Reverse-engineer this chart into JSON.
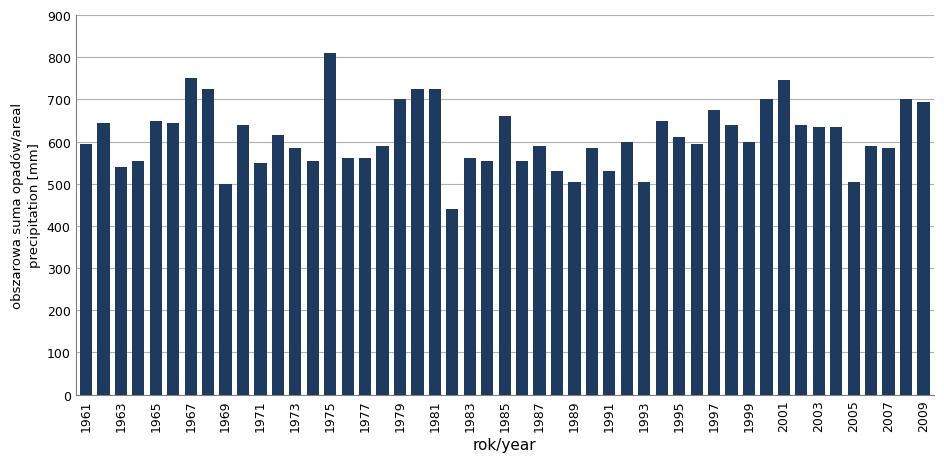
{
  "years": [
    1961,
    1962,
    1963,
    1964,
    1965,
    1966,
    1967,
    1968,
    1969,
    1970,
    1971,
    1972,
    1973,
    1974,
    1975,
    1976,
    1977,
    1978,
    1979,
    1980,
    1981,
    1982,
    1983,
    1984,
    1985,
    1986,
    1987,
    1988,
    1989,
    1990,
    1991,
    1992,
    1993,
    1994,
    1995,
    1996,
    1997,
    1998,
    1999,
    2000,
    2001,
    2002,
    2003,
    2004,
    2005,
    2006,
    2007,
    2008,
    2009
  ],
  "values": [
    595,
    645,
    540,
    555,
    650,
    645,
    750,
    725,
    500,
    640,
    550,
    615,
    585,
    555,
    810,
    560,
    560,
    590,
    700,
    725,
    725,
    440,
    560,
    555,
    660,
    555,
    590,
    530,
    505,
    585,
    530,
    600,
    505,
    650,
    610,
    595,
    675,
    640,
    600,
    700,
    745,
    640,
    635,
    635,
    505,
    590,
    585,
    700,
    695
  ],
  "bar_color": "#1e3a5f",
  "xlabel": "rok/year",
  "ylabel": "obszarowa suma opadów/areal\nprecipitation [mm]",
  "ylim": [
    0,
    900
  ],
  "yticks": [
    0,
    100,
    200,
    300,
    400,
    500,
    600,
    700,
    800,
    900
  ],
  "grid_color": "#b0b0b0",
  "xlabel_fontsize": 11,
  "ylabel_fontsize": 9.5,
  "tick_fontsize": 9
}
